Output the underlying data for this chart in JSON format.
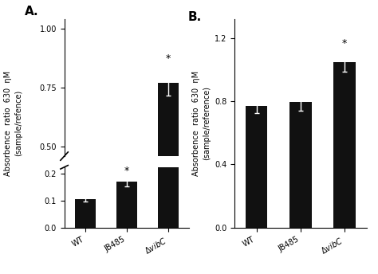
{
  "panel_A": {
    "categories": [
      "WT",
      "JB485",
      "ΔvibC"
    ],
    "values": [
      0.105,
      0.17,
      0.77
    ],
    "errors": [
      0.008,
      0.018,
      0.055
    ],
    "asterisks": [
      false,
      true,
      true
    ],
    "ylabel_line1": "Absorbence  ratio  630  ηM",
    "ylabel_line2": "(sample/refence)",
    "title": "A.",
    "bar_color": "#111111",
    "ylim_lower": [
      0.0,
      0.225
    ],
    "ylim_upper": [
      0.46,
      1.04
    ],
    "yticks_lower": [
      0.0,
      0.1,
      0.2
    ],
    "yticks_upper": [
      0.5,
      0.75,
      1.0
    ]
  },
  "panel_B": {
    "categories": [
      "WT",
      "JB485",
      "ΔvibC"
    ],
    "values": [
      0.77,
      0.795,
      1.05
    ],
    "errors": [
      0.045,
      0.055,
      0.065
    ],
    "asterisks": [
      false,
      false,
      true
    ],
    "ylabel_line1": "Absorbence  ratio  630  ηM",
    "ylabel_line2": "(sample/reference)",
    "title": "B.",
    "bar_color": "#111111",
    "ylim": [
      0.0,
      1.32
    ],
    "yticks": [
      0.0,
      0.4,
      0.8,
      1.2
    ]
  }
}
